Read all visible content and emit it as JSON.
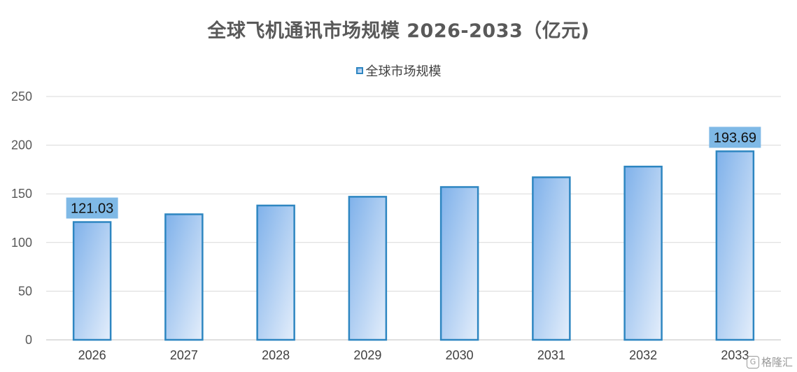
{
  "chart_data": {
    "type": "bar",
    "title": "全球飞机通讯市场规模 2026-2033（亿元)",
    "categories": [
      "2026",
      "2027",
      "2028",
      "2029",
      "2030",
      "2031",
      "2032",
      "2033"
    ],
    "series": [
      {
        "name": "全球市场规模",
        "values": [
          121.03,
          129,
          138,
          147,
          157,
          167,
          178,
          193.69
        ]
      }
    ],
    "data_labels": [
      {
        "category": "2026",
        "text": "121.03"
      },
      {
        "category": "2033",
        "text": "193.69"
      }
    ],
    "y_ticks": [
      "0",
      "50",
      "100",
      "150",
      "200",
      "250"
    ],
    "ylim": [
      0,
      250
    ],
    "grid": true,
    "legend_position": "top",
    "colors": {
      "bar_fill_top": "#7fb1ea",
      "bar_fill_bottom": "#e4eefb",
      "bar_border": "#2e86c1",
      "label_bg": "#7fb9e6",
      "grid": "#d9d9d9"
    }
  },
  "watermark": {
    "icon": "G",
    "text": "格隆汇"
  }
}
